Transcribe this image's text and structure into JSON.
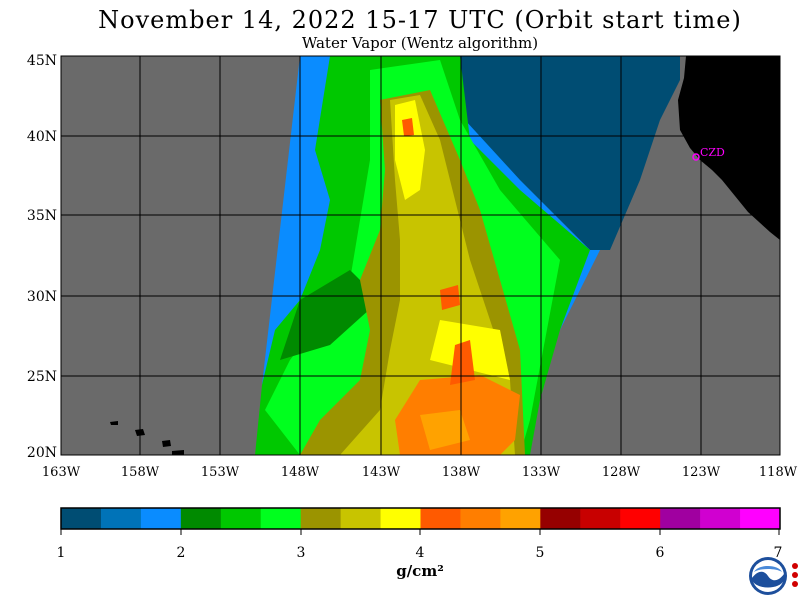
{
  "header": {
    "title": "November 14, 2022  15-17 UTC  (Orbit start time)",
    "subtitle": "Water Vapor (Wentz algorithm)"
  },
  "map": {
    "lat_labels": [
      "45N",
      "40N",
      "35N",
      "30N",
      "25N",
      "20N"
    ],
    "lon_labels": [
      "163W",
      "158W",
      "153W",
      "148W",
      "143W",
      "138W",
      "133W",
      "128W",
      "123W",
      "118W"
    ],
    "station_label": "CZD",
    "colors": {
      "no_data": "#6a6a6a",
      "land": "#000000",
      "grid": "#000000",
      "station": "#ff00ff"
    }
  },
  "legend": {
    "colors": [
      "#004d73",
      "#0073b8",
      "#0a8cff",
      "#008a00",
      "#00c800",
      "#00ff1e",
      "#9b9400",
      "#c8c400",
      "#ffff00",
      "#ff5a00",
      "#ff7e00",
      "#ffa200",
      "#960000",
      "#c80000",
      "#ff0000",
      "#a000a0",
      "#d000d0",
      "#ff00ff"
    ],
    "tick_labels": [
      "1",
      "2",
      "3",
      "4",
      "5",
      "6",
      "7"
    ],
    "unit": "g/cm²"
  },
  "logo": {
    "name": "NOAA"
  }
}
